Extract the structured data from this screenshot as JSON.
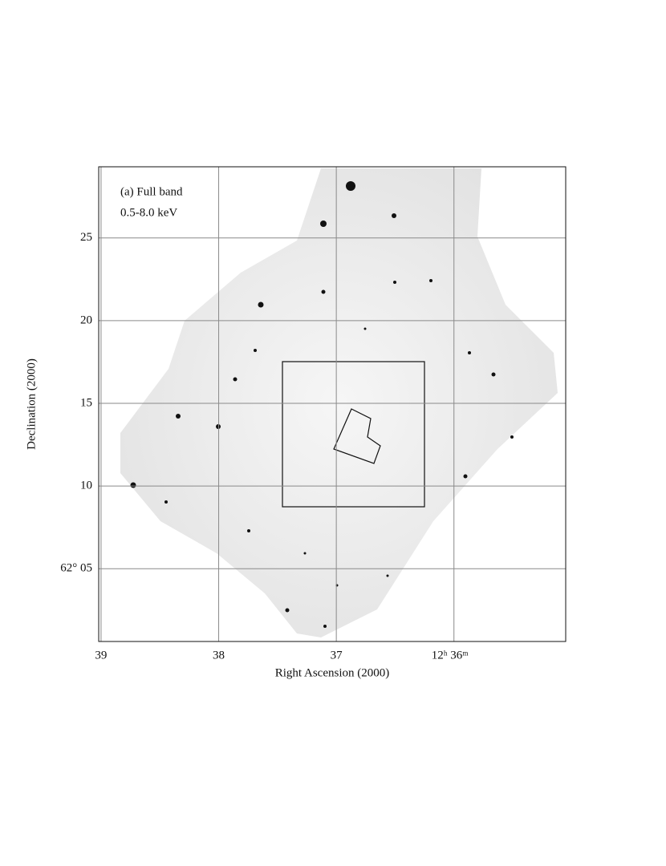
{
  "chart_data": {
    "type": "image",
    "annotations": [
      "(a) Full band",
      "0.5-8.0 keV"
    ],
    "x_label": "Right Ascension (2000)",
    "y_label": "Declination (2000)",
    "xlim": [
      39.02,
      35.05
    ],
    "xticks": [
      39,
      38,
      37,
      {
        "value": 36,
        "label": "12ʰ 36ᵐ"
      }
    ],
    "ylim": [
      0.6,
      29.3
    ],
    "yticks": [
      25,
      20,
      15,
      10,
      {
        "value": 5,
        "label": "62° 05"
      }
    ],
    "grid": true
  }
}
